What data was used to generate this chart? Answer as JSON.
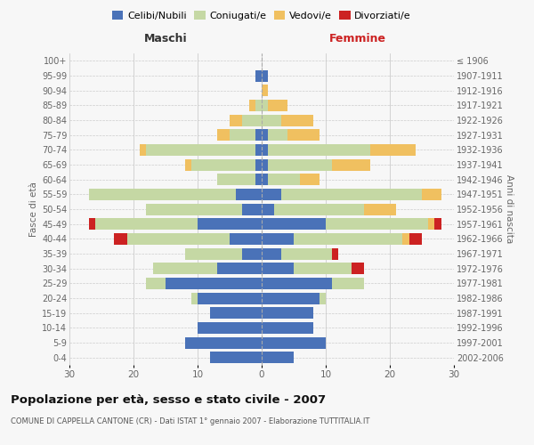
{
  "age_groups": [
    "0-4",
    "5-9",
    "10-14",
    "15-19",
    "20-24",
    "25-29",
    "30-34",
    "35-39",
    "40-44",
    "45-49",
    "50-54",
    "55-59",
    "60-64",
    "65-69",
    "70-74",
    "75-79",
    "80-84",
    "85-89",
    "90-94",
    "95-99",
    "100+"
  ],
  "birth_years": [
    "2002-2006",
    "1997-2001",
    "1992-1996",
    "1987-1991",
    "1982-1986",
    "1977-1981",
    "1972-1976",
    "1967-1971",
    "1962-1966",
    "1957-1961",
    "1952-1956",
    "1947-1951",
    "1942-1946",
    "1937-1941",
    "1932-1936",
    "1927-1931",
    "1922-1926",
    "1917-1921",
    "1912-1916",
    "1907-1911",
    "≤ 1906"
  ],
  "colors": {
    "celibi": "#4a72b8",
    "coniugati": "#c5d8a4",
    "vedovi": "#f0c060",
    "divorziati": "#cc2222"
  },
  "maschi": {
    "celibi": [
      8,
      12,
      10,
      8,
      10,
      15,
      7,
      3,
      5,
      10,
      3,
      4,
      1,
      1,
      1,
      1,
      0,
      0,
      0,
      1,
      0
    ],
    "coniugati": [
      0,
      0,
      0,
      0,
      1,
      3,
      10,
      9,
      16,
      16,
      15,
      23,
      6,
      10,
      17,
      4,
      3,
      1,
      0,
      0,
      0
    ],
    "vedovi": [
      0,
      0,
      0,
      0,
      0,
      0,
      0,
      0,
      0,
      0,
      0,
      0,
      0,
      1,
      1,
      2,
      2,
      1,
      0,
      0,
      0
    ],
    "divorziati": [
      0,
      0,
      0,
      0,
      0,
      0,
      0,
      0,
      2,
      1,
      0,
      0,
      0,
      0,
      0,
      0,
      0,
      0,
      0,
      0,
      0
    ]
  },
  "femmine": {
    "celibi": [
      5,
      10,
      8,
      8,
      9,
      11,
      5,
      3,
      5,
      10,
      2,
      3,
      1,
      1,
      1,
      1,
      0,
      0,
      0,
      1,
      0
    ],
    "coniugati": [
      0,
      0,
      0,
      0,
      1,
      5,
      9,
      8,
      17,
      16,
      14,
      22,
      5,
      10,
      16,
      3,
      3,
      1,
      0,
      0,
      0
    ],
    "vedovi": [
      0,
      0,
      0,
      0,
      0,
      0,
      0,
      0,
      1,
      1,
      5,
      3,
      3,
      6,
      7,
      5,
      5,
      3,
      1,
      0,
      0
    ],
    "divorziati": [
      0,
      0,
      0,
      0,
      0,
      0,
      2,
      1,
      2,
      1,
      0,
      0,
      0,
      0,
      0,
      0,
      0,
      0,
      0,
      0,
      0
    ]
  },
  "xlim": 30,
  "title": "Popolazione per età, sesso e stato civile - 2007",
  "subtitle": "COMUNE DI CAPPELLA CANTONE (CR) - Dati ISTAT 1° gennaio 2007 - Elaborazione TUTTITALIA.IT",
  "label_maschi": "Maschi",
  "label_femmine": "Femmine",
  "label_fasce": "Fasce di età",
  "label_anni": "Anni di nascita",
  "legend_labels": [
    "Celibi/Nubili",
    "Coniugati/e",
    "Vedovi/e",
    "Divorziati/e"
  ],
  "bg_color": "#f7f7f7",
  "grid_color": "#cccccc",
  "xticks": [
    30,
    20,
    10,
    0,
    10,
    20,
    30
  ]
}
